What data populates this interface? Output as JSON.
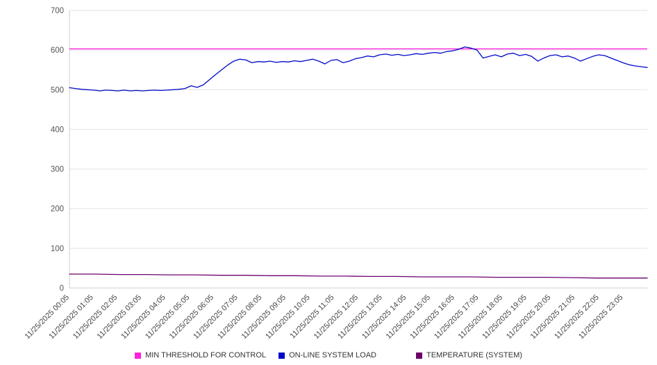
{
  "chart_data": {
    "type": "line",
    "title": "",
    "xlabel": "",
    "ylabel": "",
    "ylim": [
      0,
      700
    ],
    "yticks": [
      0,
      100,
      200,
      300,
      400,
      500,
      600,
      700
    ],
    "grid": "horizontal",
    "legend_position": "bottom",
    "x_labels": [
      "11/25/2025 00:05",
      "11/25/2025 01:05",
      "11/25/2025 02:05",
      "11/25/2025 03:05",
      "11/25/2025 04:05",
      "11/25/2025 05:05",
      "11/25/2025 06:05",
      "11/25/2025 07:05",
      "11/25/2025 08:05",
      "11/25/2025 09:05",
      "11/25/2025 10:05",
      "11/25/2025 11:05",
      "11/25/2025 12:05",
      "11/25/2025 13:05",
      "11/25/2025 14:05",
      "11/25/2025 15:05",
      "11/25/2025 16:05",
      "11/25/2025 17:05",
      "11/25/2025 18:05",
      "11/25/2025 19:05",
      "11/25/2025 20:05",
      "11/25/2025 21:05",
      "11/25/2025 22:05",
      "11/25/2025 23:05"
    ],
    "series": [
      {
        "name": "MIN THRESHOLD FOR CONTROL",
        "color": "#ff22dd",
        "constant_value": 603
      },
      {
        "name": "ON-LINE SYSTEM LOAD",
        "color": "#0008c8",
        "values": [
          505,
          503,
          501,
          500,
          499,
          497,
          499,
          498,
          497,
          499,
          497,
          498,
          497,
          498,
          499,
          498,
          499,
          500,
          501,
          503,
          510,
          506,
          512,
          525,
          538,
          550,
          562,
          572,
          577,
          575,
          568,
          571,
          570,
          572,
          569,
          571,
          570,
          573,
          571,
          574,
          577,
          572,
          565,
          574,
          576,
          568,
          572,
          578,
          581,
          585,
          583,
          588,
          590,
          587,
          589,
          586,
          588,
          591,
          589,
          592,
          594,
          592,
          596,
          598,
          602,
          608,
          605,
          600,
          580,
          584,
          588,
          583,
          590,
          592,
          586,
          589,
          584,
          572,
          580,
          586,
          588,
          583,
          585,
          580,
          572,
          578,
          584,
          588,
          586,
          580,
          574,
          568,
          563,
          560,
          558,
          556
        ]
      },
      {
        "name": "TEMPERATURE (SYSTEM)",
        "color": "#6b006b",
        "values": [
          35,
          35,
          34,
          34,
          33,
          33,
          32,
          32,
          31,
          31,
          30,
          30,
          29,
          29,
          28,
          28,
          28,
          27,
          27,
          27,
          26,
          25,
          25,
          25
        ]
      }
    ]
  }
}
